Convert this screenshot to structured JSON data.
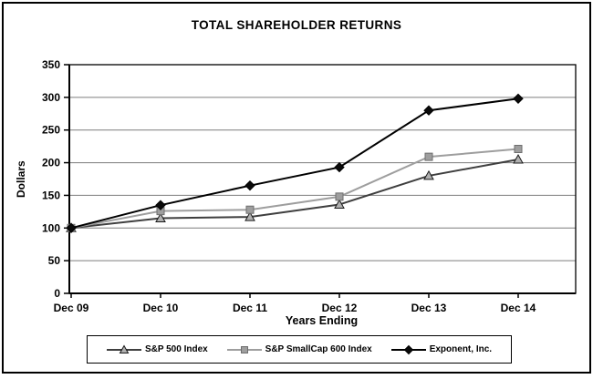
{
  "chart_data": {
    "type": "line",
    "title": "TOTAL SHAREHOLDER RETURNS",
    "xlabel": "Years Ending",
    "ylabel": "Dollars",
    "categories": [
      "Dec 09",
      "Dec 10",
      "Dec 11",
      "Dec 12",
      "Dec 13",
      "Dec 14"
    ],
    "ylim": [
      0,
      350
    ],
    "ytick_step": 50,
    "grid": "horizontal",
    "legend_position": "bottom",
    "series": [
      {
        "name": "S&P 500 Index",
        "marker": "triangle",
        "line_color": "#3f3f3f",
        "marker_fill": "#b0b0b0",
        "marker_stroke": "#1a1a1a",
        "values": [
          100,
          115,
          117,
          136,
          180,
          205
        ]
      },
      {
        "name": "S&P SmallCap 600 Index",
        "marker": "square",
        "line_color": "#9e9e9e",
        "marker_fill": "#9e9e9e",
        "marker_stroke": "#6e6e6e",
        "values": [
          100,
          126,
          128,
          148,
          209,
          221
        ]
      },
      {
        "name": "Exponent, Inc.",
        "marker": "diamond",
        "line_color": "#000000",
        "marker_fill": "#0a0a0a",
        "marker_stroke": "#000000",
        "values": [
          100,
          135,
          165,
          193,
          280,
          298
        ]
      }
    ]
  }
}
